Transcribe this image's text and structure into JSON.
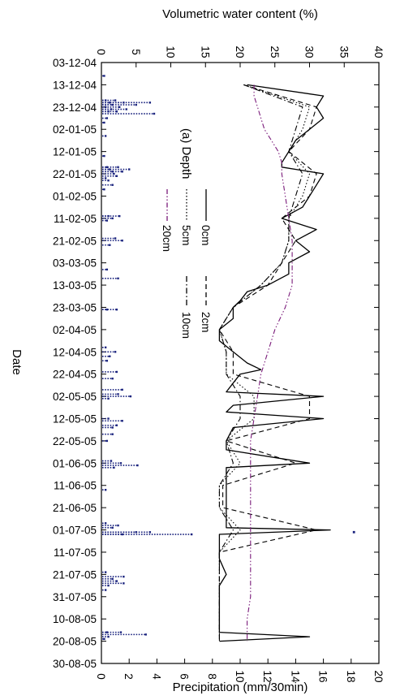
{
  "chart_data": {
    "type": "line",
    "orientation": "rotated-90",
    "annotation": "(a) Depth",
    "date_axis": {
      "label": "Date",
      "ticks": [
        "03-12-04",
        "13-12-04",
        "23-12-04",
        "02-01-05",
        "12-01-05",
        "22-01-05",
        "01-02-05",
        "11-02-05",
        "21-02-05",
        "03-03-05",
        "13-03-05",
        "23-03-05",
        "02-04-05",
        "12-04-05",
        "22-04-05",
        "02-05-05",
        "12-05-05",
        "22-05-05",
        "01-06-05",
        "11-06-05",
        "21-06-05",
        "01-07-05",
        "11-07-05",
        "21-07-05",
        "31-07-05",
        "10-08-05",
        "20-08-05",
        "30-08-05"
      ],
      "range": [
        "2004-12-03",
        "2005-08-30"
      ]
    },
    "vwc_axis": {
      "label": "Volumetric water content (%)",
      "range": [
        0,
        40
      ],
      "ticks": [
        "0",
        "5",
        "10",
        "15",
        "20",
        "25",
        "30",
        "35",
        "40"
      ]
    },
    "precip_axis": {
      "label": "Precipitation (mm/30min)",
      "range": [
        0,
        20
      ],
      "ticks": [
        "0",
        "2",
        "4",
        "6",
        "8",
        "10",
        "12",
        "14",
        "16",
        "18",
        "20"
      ]
    },
    "series": [
      {
        "name": "0cm",
        "style": "solid",
        "color": "#000000",
        "dates": [
          "2004-12-13",
          "2004-12-18",
          "2004-12-23",
          "2004-12-28",
          "2005-01-02",
          "2005-01-07",
          "2005-01-12",
          "2005-01-17",
          "2005-01-19",
          "2005-01-22",
          "2005-01-27",
          "2005-02-01",
          "2005-02-06",
          "2005-02-11",
          "2005-02-16",
          "2005-02-21",
          "2005-02-26",
          "2005-03-03",
          "2005-03-08",
          "2005-03-13",
          "2005-03-16",
          "2005-03-20",
          "2005-03-23",
          "2005-03-28",
          "2005-04-02",
          "2005-04-07",
          "2005-04-12",
          "2005-04-17",
          "2005-04-20",
          "2005-04-22",
          "2005-04-26",
          "2005-04-30",
          "2005-05-02",
          "2005-05-06",
          "2005-05-09",
          "2005-05-12",
          "2005-05-16",
          "2005-05-22",
          "2005-05-26",
          "2005-06-01",
          "2005-06-03",
          "2005-06-11",
          "2005-06-21",
          "2005-06-30",
          "2005-07-01",
          "2005-07-03",
          "2005-07-08",
          "2005-07-14",
          "2005-07-21",
          "2005-07-26",
          "2005-07-31",
          "2005-08-05",
          "2005-08-10",
          "2005-08-16",
          "2005-08-18",
          "2005-08-20"
        ],
        "values": [
          21,
          32,
          31,
          32,
          30,
          28,
          27,
          26,
          26,
          32,
          31,
          30,
          29,
          26,
          31,
          28,
          30,
          27,
          27,
          24,
          21,
          20,
          19,
          19,
          17,
          17,
          19,
          21,
          23,
          20,
          19,
          18,
          32,
          19,
          18,
          32,
          19,
          18,
          18,
          30,
          18,
          18,
          18,
          18,
          33,
          17,
          17,
          17,
          18,
          17,
          17,
          17,
          17,
          17,
          30,
          17
        ]
      },
      {
        "name": "2cm",
        "style": "dashed",
        "color": "#000000",
        "dates": [
          "2004-12-13",
          "2004-12-23",
          "2005-01-02",
          "2005-01-12",
          "2005-01-22",
          "2005-02-01",
          "2005-02-11",
          "2005-02-21",
          "2005-03-03",
          "2005-03-13",
          "2005-03-23",
          "2005-04-02",
          "2005-04-12",
          "2005-04-22",
          "2005-05-02",
          "2005-05-12",
          "2005-05-22",
          "2005-06-01",
          "2005-06-11",
          "2005-06-21",
          "2005-07-01",
          "2005-07-11",
          "2005-07-21",
          "2005-07-31",
          "2005-08-10",
          "2005-08-20"
        ],
        "values": [
          20.5,
          31,
          30,
          27,
          31,
          30,
          26,
          28,
          26,
          24,
          19,
          17,
          19,
          19,
          30,
          30,
          18,
          28,
          17.5,
          17.5,
          31,
          17,
          17,
          17,
          17,
          17
        ]
      },
      {
        "name": "5cm",
        "style": "dotted",
        "color": "#000000",
        "dates": [
          "2004-12-13",
          "2004-12-23",
          "2005-01-02",
          "2005-01-12",
          "2005-01-22",
          "2005-02-01",
          "2005-02-11",
          "2005-02-21",
          "2005-03-03",
          "2005-03-13",
          "2005-03-23",
          "2005-04-02",
          "2005-04-12",
          "2005-04-22",
          "2005-05-02",
          "2005-05-12",
          "2005-05-22",
          "2005-06-01",
          "2005-06-11",
          "2005-06-21",
          "2005-07-01",
          "2005-07-11",
          "2005-07-21",
          "2005-07-31",
          "2005-08-10",
          "2005-08-20"
        ],
        "values": [
          20.5,
          30,
          29,
          27,
          30,
          29,
          27,
          27,
          26,
          23,
          19,
          17,
          18,
          18,
          22,
          22,
          18,
          20,
          17,
          17,
          20,
          17,
          17,
          17,
          17,
          17
        ]
      },
      {
        "name": "10cm",
        "style": "dashdot",
        "color": "#000000",
        "dates": [
          "2004-12-13",
          "2004-12-23",
          "2005-01-02",
          "2005-01-12",
          "2005-01-22",
          "2005-02-01",
          "2005-02-11",
          "2005-02-21",
          "2005-03-03",
          "2005-03-13",
          "2005-03-23",
          "2005-04-02",
          "2005-04-12",
          "2005-04-22",
          "2005-05-02",
          "2005-05-12",
          "2005-05-22",
          "2005-06-01",
          "2005-06-11",
          "2005-06-21",
          "2005-07-01",
          "2005-07-11",
          "2005-07-21",
          "2005-07-31",
          "2005-08-10",
          "2005-08-20"
        ],
        "values": [
          20.5,
          29,
          28,
          27,
          29,
          28,
          27,
          27,
          26,
          23,
          19,
          17,
          18,
          18,
          20,
          20,
          18,
          19,
          17,
          17,
          19,
          17,
          17,
          17,
          17,
          17
        ]
      },
      {
        "name": "20cm",
        "style": "dashdotdot",
        "color": "#7a1a7a",
        "dates": [
          "2004-12-13",
          "2004-12-18",
          "2004-12-23",
          "2004-12-28",
          "2005-01-02",
          "2005-01-07",
          "2005-01-12",
          "2005-01-17",
          "2005-01-22",
          "2005-02-01",
          "2005-02-11",
          "2005-02-21",
          "2005-03-03",
          "2005-03-13",
          "2005-03-23",
          "2005-04-02",
          "2005-04-12",
          "2005-04-22",
          "2005-05-02",
          "2005-05-12",
          "2005-05-22",
          "2005-06-01",
          "2005-06-11",
          "2005-06-21",
          "2005-07-01",
          "2005-07-11",
          "2005-07-21",
          "2005-07-31",
          "2005-08-10",
          "2005-08-20"
        ],
        "values": [
          22,
          22,
          22.5,
          23,
          23.5,
          24.5,
          25.5,
          26,
          26,
          26.5,
          27,
          27.5,
          27.5,
          27.5,
          26.5,
          25,
          24,
          23,
          22.5,
          22,
          21.5,
          21.5,
          21.5,
          21.5,
          21.5,
          21.5,
          21.5,
          21.5,
          21,
          21
        ]
      }
    ],
    "precipitation": {
      "name": "Precipitation",
      "color": "#1a237e",
      "dates": [
        "2004-12-09",
        "2004-12-20",
        "2004-12-20",
        "2004-12-21",
        "2004-12-21",
        "2004-12-21",
        "2004-12-22",
        "2004-12-22",
        "2004-12-23",
        "2004-12-23",
        "2004-12-24",
        "2004-12-24",
        "2004-12-25",
        "2004-12-25",
        "2004-12-26",
        "2004-12-28",
        "2004-12-30",
        "2005-01-05",
        "2005-01-14",
        "2005-01-19",
        "2005-01-19",
        "2005-01-20",
        "2005-01-20",
        "2005-01-21",
        "2005-01-21",
        "2005-01-22",
        "2005-01-23",
        "2005-01-24",
        "2005-01-25",
        "2005-01-27",
        "2005-01-29",
        "2005-02-10",
        "2005-02-10",
        "2005-02-11",
        "2005-02-12",
        "2005-02-20",
        "2005-02-21",
        "2005-02-23",
        "2005-03-06",
        "2005-03-10",
        "2005-03-24",
        "2005-03-24",
        "2005-04-10",
        "2005-04-12",
        "2005-04-14",
        "2005-04-16",
        "2005-04-21",
        "2005-04-24",
        "2005-04-29",
        "2005-05-01",
        "2005-05-02",
        "2005-05-03",
        "2005-05-12",
        "2005-05-13",
        "2005-05-15",
        "2005-05-16",
        "2005-05-19",
        "2005-05-22",
        "2005-05-31",
        "2005-06-01",
        "2005-06-02",
        "2005-06-03",
        "2005-06-13",
        "2005-06-28",
        "2005-06-29",
        "2005-06-30",
        "2005-07-02",
        "2005-07-02",
        "2005-07-03",
        "2005-07-03",
        "2005-07-20",
        "2005-07-22",
        "2005-07-23",
        "2005-07-24",
        "2005-07-25",
        "2005-07-26",
        "2005-07-28",
        "2005-08-16",
        "2005-08-16",
        "2005-08-17",
        "2005-08-18",
        "2005-08-19"
      ],
      "values": [
        0.2,
        0.3,
        1,
        0.6,
        1.6,
        3.5,
        0.8,
        2.5,
        0.3,
        1.3,
        0.7,
        1.8,
        0.5,
        1.1,
        3.8,
        0.4,
        0.2,
        0.3,
        0.2,
        0.4,
        1.2,
        0.6,
        2,
        0.8,
        1.5,
        0.9,
        1.1,
        0.3,
        0.5,
        0.8,
        0.2,
        0.5,
        1.3,
        0.8,
        0.4,
        1,
        1.5,
        0.6,
        0.4,
        1.2,
        0.4,
        1.1,
        0.3,
        1,
        0.6,
        0.4,
        1.1,
        0.8,
        1.5,
        1.2,
        2.1,
        0.5,
        0.5,
        1.5,
        1.1,
        0.8,
        0.8,
        0.4,
        0.7,
        1.4,
        2.6,
        0.9,
        0.3,
        0.3,
        1.2,
        0.8,
        2.5,
        3.5,
        1.5,
        6.5,
        0.3,
        1.6,
        0.8,
        1.1,
        1.6,
        0.5,
        0.3,
        0.4,
        1.4,
        3.2,
        0.5,
        0.2
      ]
    },
    "precip_extra": {
      "dates": [
        "2005-07-02"
      ],
      "values": [
        18.2
      ]
    }
  }
}
